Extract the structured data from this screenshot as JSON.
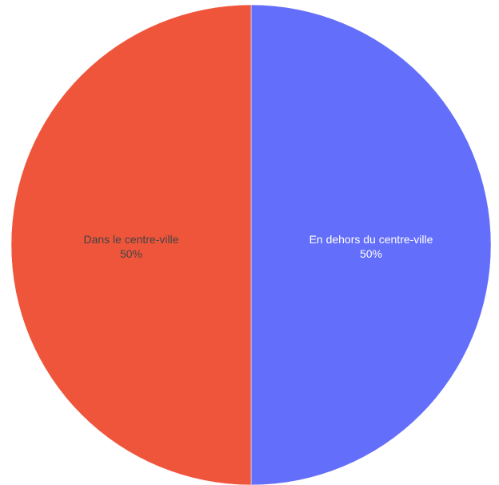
{
  "chart_data": {
    "type": "pie",
    "title": "",
    "slices": [
      {
        "label": "En dehors du centre-ville",
        "value": 50,
        "value_label": "50%",
        "color": "#636efa",
        "text_color": "#ffffff"
      },
      {
        "label": "Dans le centre-ville",
        "value": 50,
        "value_label": "50%",
        "color": "#ef553b",
        "text_color": "#444444"
      }
    ],
    "start_angle_deg": 0,
    "direction": "clockwise",
    "legend": "none"
  }
}
